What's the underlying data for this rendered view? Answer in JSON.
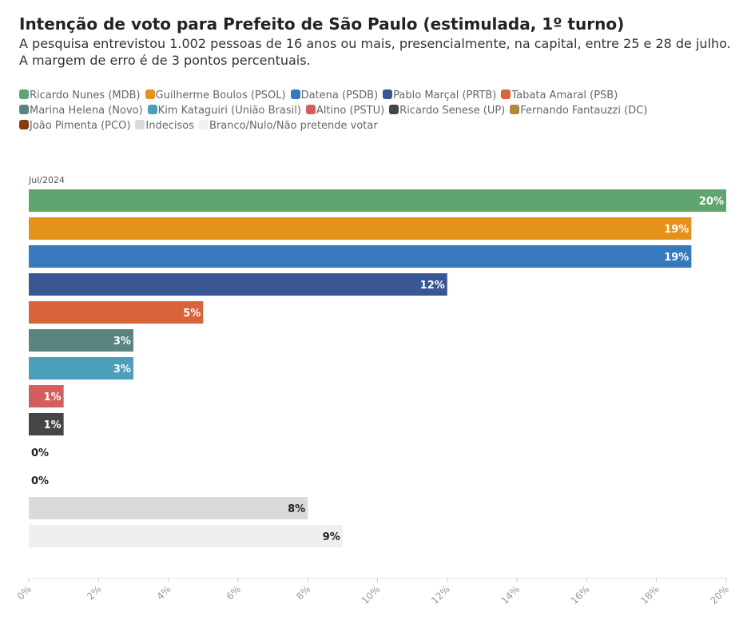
{
  "chart_data": {
    "type": "bar",
    "orientation": "horizontal",
    "title": "Intenção de voto para Prefeito de São Paulo (estimulada, 1º turno)",
    "subtitle": "A pesquisa entrevistou 1.002 pessoas de 16 anos ou mais, presencialmente, na capital, entre 25 e 28 de julho. A margem de erro é de 3 pontos percentuais.",
    "period": "Jul/2024",
    "xlim": [
      0,
      20
    ],
    "xticks": [
      0,
      2,
      4,
      6,
      8,
      10,
      12,
      14,
      16,
      18,
      20
    ],
    "tick_suffix": "%",
    "legend_placement": "top-left",
    "grid": false,
    "series": [
      {
        "name": "Ricardo Nunes (MDB)",
        "value": 20,
        "label": "20%",
        "color": "#60a56f",
        "label_color": "#ffffff"
      },
      {
        "name": "Guilherme Boulos (PSOL)",
        "value": 19,
        "label": "19%",
        "color": "#e5921a",
        "label_color": "#ffffff"
      },
      {
        "name": "Datena (PSDB)",
        "value": 19,
        "label": "19%",
        "color": "#3679bd",
        "label_color": "#ffffff"
      },
      {
        "name": "Pablo Marçal (PRTB)",
        "value": 12,
        "label": "12%",
        "color": "#3a5795",
        "label_color": "#ffffff"
      },
      {
        "name": "Tabata Amaral (PSB)",
        "value": 5,
        "label": "5%",
        "color": "#d8643a",
        "label_color": "#ffffff"
      },
      {
        "name": "Marina Helena (Novo)",
        "value": 3,
        "label": "3%",
        "color": "#5a8480",
        "label_color": "#ffffff"
      },
      {
        "name": "Kim Kataguiri (União Brasil)",
        "value": 3,
        "label": "3%",
        "color": "#4c9fb9",
        "label_color": "#ffffff"
      },
      {
        "name": "Altino (PSTU)",
        "value": 1,
        "label": "1%",
        "color": "#d45e5e",
        "label_color": "#ffffff"
      },
      {
        "name": "Ricardo Senese (UP)",
        "value": 1,
        "label": "1%",
        "color": "#454545",
        "label_color": "#ffffff"
      },
      {
        "name": "Fernando Fantauzzi (DC)",
        "value": 0,
        "label": "0%",
        "color": "#b08a34",
        "label_color": "#222222"
      },
      {
        "name": "João Pimenta (PCO)",
        "value": 0,
        "label": "0%",
        "color": "#8a3a12",
        "label_color": "#222222"
      },
      {
        "name": "Indecisos",
        "value": 8,
        "label": "8%",
        "color": "#dadada",
        "label_color": "#222222"
      },
      {
        "name": "Branco/Nulo/Não pretende votar",
        "value": 9,
        "label": "9%",
        "color": "#efefef",
        "label_color": "#222222"
      }
    ]
  }
}
